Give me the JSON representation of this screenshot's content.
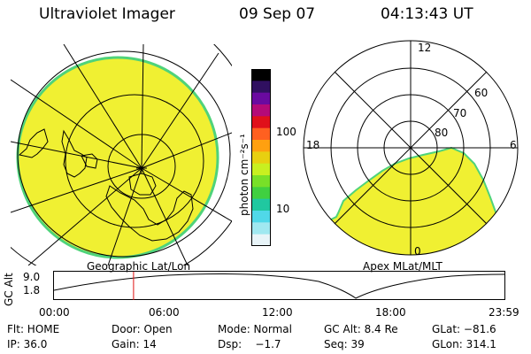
{
  "header": {
    "instrument": "Ultraviolet Imager",
    "date": "09 Sep 07",
    "time": "04:13:43 UT"
  },
  "left_panel": {
    "caption": "Geographic Lat/Lon",
    "fill_color": "#f0f032",
    "edge_color": "#4fd37a"
  },
  "colorbar": {
    "label": "photon cm⁻²s⁻¹",
    "ticks": [
      "100",
      "10"
    ],
    "colors": [
      "#000000",
      "#301060",
      "#6a0aa0",
      "#b40a78",
      "#e0101a",
      "#ff6020",
      "#ffa010",
      "#e8d010",
      "#c8f020",
      "#78e028",
      "#40d040",
      "#20c8a0",
      "#50d8e8",
      "#a0e8f0",
      "#e8f4f8"
    ]
  },
  "right_panel": {
    "caption": "Apex MLat/MLT",
    "mlt_labels": {
      "top": "12",
      "left": "18",
      "right": "6",
      "bottom": "0"
    },
    "lat_labels": [
      "60",
      "70",
      "80"
    ],
    "fill_color": "#f0f032"
  },
  "altitude_plot": {
    "ylabel": "GC Alt",
    "yticks": [
      "9.0",
      "1.8"
    ],
    "xticks": [
      "00:00",
      "06:00",
      "12:00",
      "18:00",
      "23:59"
    ],
    "marker_hour": 4.23,
    "marker_color": "#e01010"
  },
  "info": {
    "row1": [
      "Flt: HOME",
      "Door: Open",
      "Mode: Normal",
      "GC Alt: 8.4 Re",
      "GLat: −81.6"
    ],
    "row2": [
      "IP: 36.0",
      "Gain: 14",
      "Dsp:    −1.7",
      "Seq: 39",
      "GLon: 314.1"
    ]
  }
}
